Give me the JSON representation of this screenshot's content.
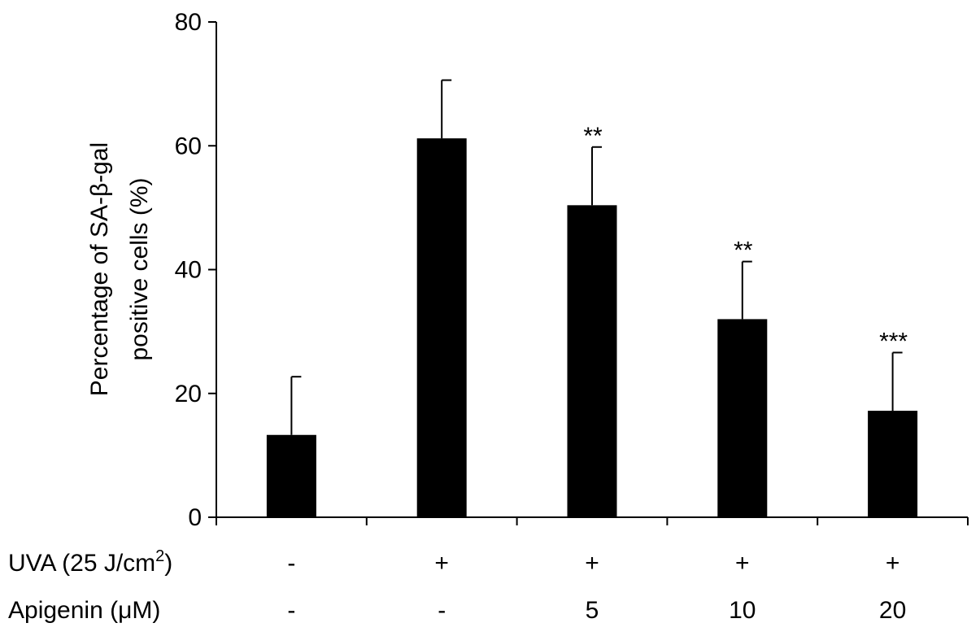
{
  "chart_data": {
    "type": "bar",
    "ylabel_lines": [
      "Percentage of SA-β-gal",
      "positive cells (%)"
    ],
    "ylim": [
      0,
      80
    ],
    "yticks": [
      "0",
      "20",
      "40",
      "60",
      "80"
    ],
    "grid": false,
    "bar_color": "#000000",
    "values": [
      13.3,
      61.2,
      50.4,
      32.0,
      17.2
    ],
    "errors": [
      9.4,
      9.4,
      9.4,
      9.3,
      9.4
    ],
    "significance": [
      "",
      "",
      "**",
      "**",
      "***"
    ],
    "factor_rows": [
      {
        "label": "UVA (25 J/cm",
        "label_sup": "2",
        "label_tail": ")",
        "values": [
          "-",
          "+",
          "+",
          "+",
          "+"
        ]
      },
      {
        "label": "Apigenin (μM)",
        "values": [
          "-",
          "-",
          "5",
          "10",
          "20"
        ]
      }
    ]
  }
}
